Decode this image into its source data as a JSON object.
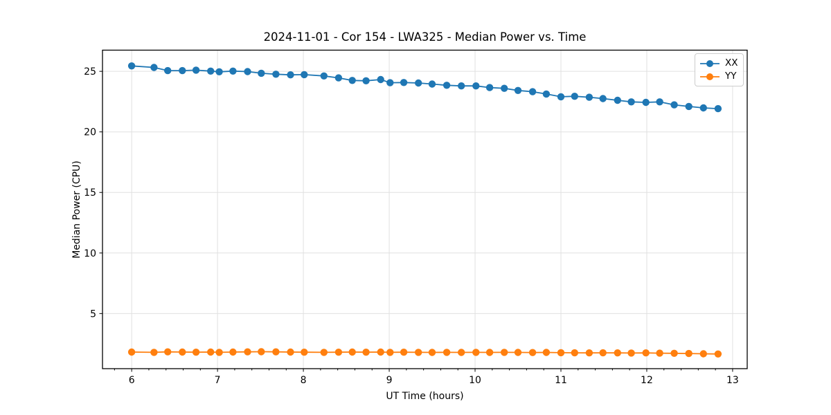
{
  "chart_data": {
    "type": "line",
    "title": "2024-11-01 - Cor 154 - LWA325 - Median Power vs. Time",
    "xlabel": "UT Time (hours)",
    "ylabel": "Median Power (CPU)",
    "xlim": [
      5.66,
      13.17
    ],
    "ylim": [
      0.45,
      26.75
    ],
    "x_major_ticks": [
      6,
      7,
      8,
      9,
      10,
      11,
      12,
      13
    ],
    "x_minor_tick_step": 0.2,
    "y_major_ticks": [
      5,
      10,
      15,
      20,
      25
    ],
    "grid": "major",
    "grid_color": "#e0e0e0",
    "spine_color": "#000000",
    "legend_position": "upper right",
    "x": [
      6.0,
      6.26,
      6.42,
      6.59,
      6.75,
      6.92,
      7.02,
      7.18,
      7.35,
      7.51,
      7.68,
      7.85,
      8.01,
      8.24,
      8.41,
      8.57,
      8.73,
      8.9,
      9.01,
      9.17,
      9.34,
      9.5,
      9.67,
      9.84,
      10.01,
      10.17,
      10.34,
      10.5,
      10.67,
      10.83,
      11.0,
      11.16,
      11.33,
      11.49,
      11.66,
      11.82,
      11.99,
      12.15,
      12.32,
      12.49,
      12.66,
      12.83
    ],
    "series": [
      {
        "name": "XX",
        "color": "#1f77b4",
        "values": [
          25.45,
          25.32,
          25.06,
          25.06,
          25.1,
          25.02,
          24.96,
          25.02,
          24.98,
          24.84,
          24.76,
          24.71,
          24.73,
          24.62,
          24.46,
          24.25,
          24.22,
          24.32,
          24.06,
          24.08,
          24.04,
          23.95,
          23.85,
          23.8,
          23.8,
          23.66,
          23.6,
          23.42,
          23.32,
          23.13,
          22.9,
          22.94,
          22.86,
          22.75,
          22.61,
          22.48,
          22.44,
          22.48,
          22.23,
          22.1,
          21.98,
          21.92
        ]
      },
      {
        "name": "YY",
        "color": "#ff7f0e",
        "values": [
          1.82,
          1.8,
          1.84,
          1.82,
          1.81,
          1.82,
          1.8,
          1.82,
          1.84,
          1.85,
          1.84,
          1.82,
          1.81,
          1.8,
          1.81,
          1.82,
          1.81,
          1.82,
          1.8,
          1.81,
          1.8,
          1.79,
          1.8,
          1.79,
          1.8,
          1.79,
          1.8,
          1.79,
          1.78,
          1.79,
          1.77,
          1.76,
          1.75,
          1.76,
          1.75,
          1.74,
          1.75,
          1.73,
          1.72,
          1.7,
          1.68,
          1.66
        ]
      }
    ]
  }
}
